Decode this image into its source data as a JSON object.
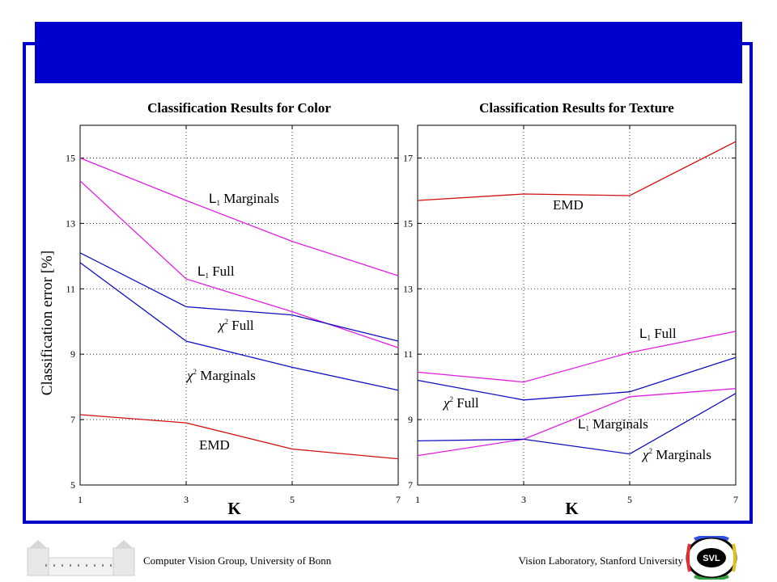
{
  "footer": {
    "left": "Computer Vision Group, University of Bonn",
    "right": "Vision Laboratory, Stanford University",
    "logo_text": "SVL"
  },
  "colors": {
    "frame": "#0000c8",
    "title_bar": "#0000cc",
    "red": "#d01010",
    "magenta": "#e020e0",
    "blue": "#1010c0"
  },
  "chart_data": [
    {
      "type": "line",
      "title": "Classification Results for Color",
      "xlabel": "K",
      "ylabel": "Classification error [%]",
      "x": [
        1,
        3,
        5,
        7
      ],
      "xlim": [
        1,
        7
      ],
      "ylim": [
        5,
        16
      ],
      "yticks": [
        5,
        7,
        9,
        11,
        13,
        15
      ],
      "grid": true,
      "series": [
        {
          "name": "L₁ Marginals",
          "color": "magenta",
          "values": [
            15.0,
            13.7,
            12.45,
            11.4
          ]
        },
        {
          "name": "L₁ Full",
          "color": "magenta",
          "values": [
            14.3,
            11.3,
            10.3,
            9.2
          ]
        },
        {
          "name": "χ² Full",
          "color": "blue",
          "values": [
            12.1,
            10.45,
            10.2,
            9.4
          ]
        },
        {
          "name": "χ² Marginals",
          "color": "blue",
          "values": [
            11.8,
            9.4,
            8.6,
            7.9
          ]
        },
        {
          "name": "EMD",
          "color": "red",
          "values": [
            7.15,
            6.9,
            6.1,
            5.8
          ]
        }
      ]
    },
    {
      "type": "line",
      "title": "Classification Results for Texture",
      "xlabel": "K",
      "ylabel": "",
      "x": [
        1,
        3,
        5,
        7
      ],
      "xlim": [
        1,
        7
      ],
      "ylim": [
        7,
        18
      ],
      "yticks": [
        7,
        9,
        11,
        13,
        15,
        17
      ],
      "grid": true,
      "series": [
        {
          "name": "EMD",
          "color": "red",
          "values": [
            15.7,
            15.9,
            15.85,
            17.5
          ]
        },
        {
          "name": "L₁ Full",
          "color": "magenta",
          "values": [
            10.45,
            10.15,
            11.05,
            11.7
          ]
        },
        {
          "name": "χ² Full",
          "color": "blue",
          "values": [
            10.2,
            9.6,
            9.85,
            10.9
          ]
        },
        {
          "name": "L₁ Marginals",
          "color": "magenta",
          "values": [
            7.9,
            8.4,
            9.7,
            9.95
          ]
        },
        {
          "name": "χ² Marginals",
          "color": "blue",
          "values": [
            8.35,
            8.4,
            7.95,
            9.8
          ]
        }
      ]
    }
  ]
}
